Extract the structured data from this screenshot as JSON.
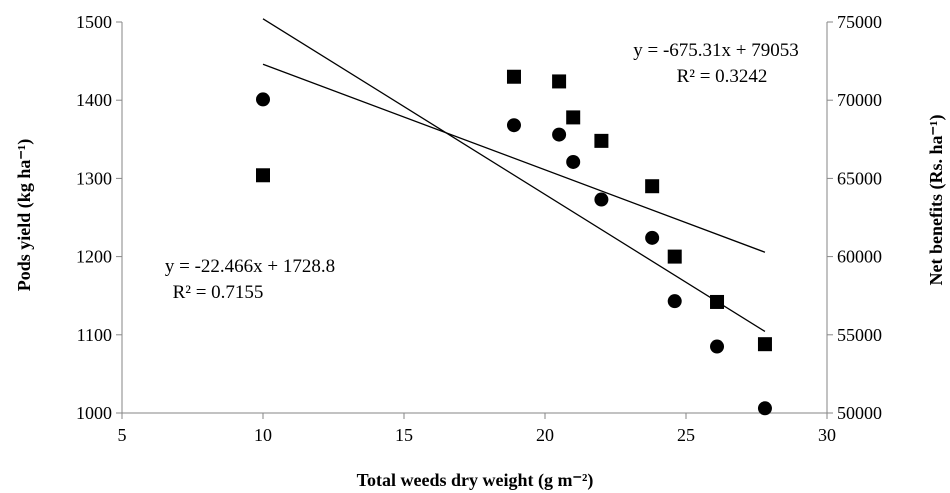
{
  "chart_data": {
    "type": "scatter",
    "xlabel": "Total weeds dry weight (g m⁻²)",
    "ylabel_left": "Pods yield (kg ha⁻¹)",
    "ylabel_right": "Net benefits (Rs. ha⁻¹)",
    "xlim": [
      5,
      30
    ],
    "xticks": [
      5,
      10,
      15,
      20,
      25,
      30
    ],
    "ylim_left": [
      1000,
      1500
    ],
    "yticks_left": [
      1000,
      1100,
      1200,
      1300,
      1400,
      1500
    ],
    "ylim_right": [
      50000,
      75000
    ],
    "yticks_right": [
      50000,
      55000,
      60000,
      65000,
      70000,
      75000
    ],
    "grid": false,
    "series": [
      {
        "marker": "circle",
        "axis": "left",
        "points": [
          [
            10.0,
            1401
          ],
          [
            18.9,
            1368
          ],
          [
            20.5,
            1356
          ],
          [
            21.0,
            1321
          ],
          [
            22.0,
            1273
          ],
          [
            23.8,
            1224
          ],
          [
            24.6,
            1143
          ],
          [
            26.1,
            1085
          ],
          [
            27.8,
            1006
          ]
        ],
        "trendline": {
          "slope": -22.466,
          "intercept": 1728.8,
          "x_range": [
            10.0,
            27.8
          ]
        }
      },
      {
        "marker": "square",
        "axis": "right",
        "points": [
          [
            10.0,
            65200
          ],
          [
            18.9,
            71500
          ],
          [
            20.5,
            71200
          ],
          [
            21.0,
            68900
          ],
          [
            22.0,
            67400
          ],
          [
            23.8,
            64500
          ],
          [
            24.6,
            60000
          ],
          [
            26.1,
            57100
          ],
          [
            27.8,
            54400
          ]
        ],
        "trendline": {
          "slope": -675.31,
          "intercept": 79053,
          "x_range": [
            10.0,
            27.8
          ]
        }
      }
    ],
    "annotations": [
      {
        "eq": "y = -22.466x + 1728.8",
        "r2": "R² = 0.7155"
      },
      {
        "eq": "y = -675.31x + 79053",
        "r2": "R² = 0.3242"
      }
    ]
  }
}
